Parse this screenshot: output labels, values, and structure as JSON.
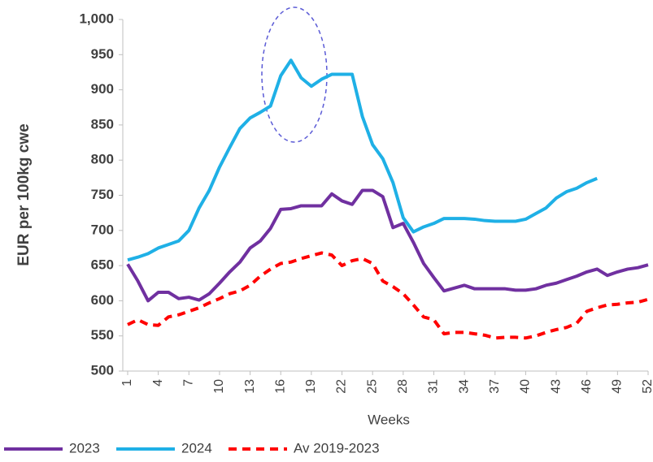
{
  "chart_data": {
    "type": "line",
    "x_label": "Weeks",
    "y_label": "EUR per 100kg cwe",
    "x": [
      1,
      2,
      3,
      4,
      5,
      6,
      7,
      8,
      9,
      10,
      11,
      12,
      13,
      14,
      15,
      16,
      17,
      18,
      19,
      20,
      21,
      22,
      23,
      24,
      25,
      26,
      27,
      28,
      29,
      30,
      31,
      32,
      33,
      34,
      35,
      36,
      37,
      38,
      39,
      40,
      41,
      42,
      43,
      44,
      45,
      46,
      47,
      48,
      49,
      50,
      51,
      52
    ],
    "xlim": [
      1,
      52
    ],
    "xticks": [
      1,
      4,
      7,
      10,
      13,
      16,
      19,
      22,
      25,
      28,
      31,
      34,
      37,
      40,
      43,
      46,
      49,
      52
    ],
    "ylim": [
      500,
      1000
    ],
    "yticks": [
      500,
      550,
      600,
      650,
      700,
      750,
      800,
      850,
      900,
      950,
      {
        "value": 1000,
        "label": "1,000"
      }
    ],
    "grid": false,
    "legend": "bottom",
    "series": [
      {
        "name": "2023",
        "color": "#7030a0",
        "dash": false,
        "values": [
          652,
          628,
          600,
          612,
          612,
          603,
          605,
          601,
          610,
          625,
          641,
          655,
          675,
          685,
          703,
          730,
          731,
          735,
          735,
          735,
          752,
          742,
          737,
          757,
          757,
          748,
          704,
          710,
          683,
          653,
          633,
          614,
          618,
          622,
          617,
          617,
          617,
          617,
          615,
          615,
          617,
          622,
          625,
          630,
          635,
          641,
          645,
          636,
          641,
          645,
          647,
          651
        ]
      },
      {
        "name": "2024",
        "color": "#1fb0e6",
        "dash": false,
        "values": [
          658,
          662,
          667,
          675,
          680,
          685,
          700,
          732,
          757,
          790,
          818,
          845,
          860,
          868,
          877,
          920,
          942,
          917,
          905,
          915,
          922,
          922,
          922,
          862,
          822,
          802,
          768,
          718,
          698,
          705,
          710,
          717,
          717,
          717,
          716,
          714,
          713,
          713,
          713,
          716,
          724,
          732,
          746,
          755,
          760,
          768,
          774,
          null,
          null,
          null,
          null,
          null
        ]
      },
      {
        "name": "Av 2019-2023",
        "color": "#ff0000",
        "dash": true,
        "values": [
          566,
          573,
          566,
          565,
          577,
          580,
          585,
          590,
          597,
          603,
          610,
          614,
          622,
          635,
          645,
          653,
          655,
          660,
          664,
          668,
          665,
          650,
          657,
          660,
          653,
          628,
          620,
          610,
          594,
          577,
          573,
          553,
          555,
          555,
          553,
          551,
          547,
          548,
          548,
          547,
          550,
          555,
          559,
          562,
          568,
          585,
          590,
          594,
          595,
          597,
          598,
          602
        ]
      }
    ]
  }
}
